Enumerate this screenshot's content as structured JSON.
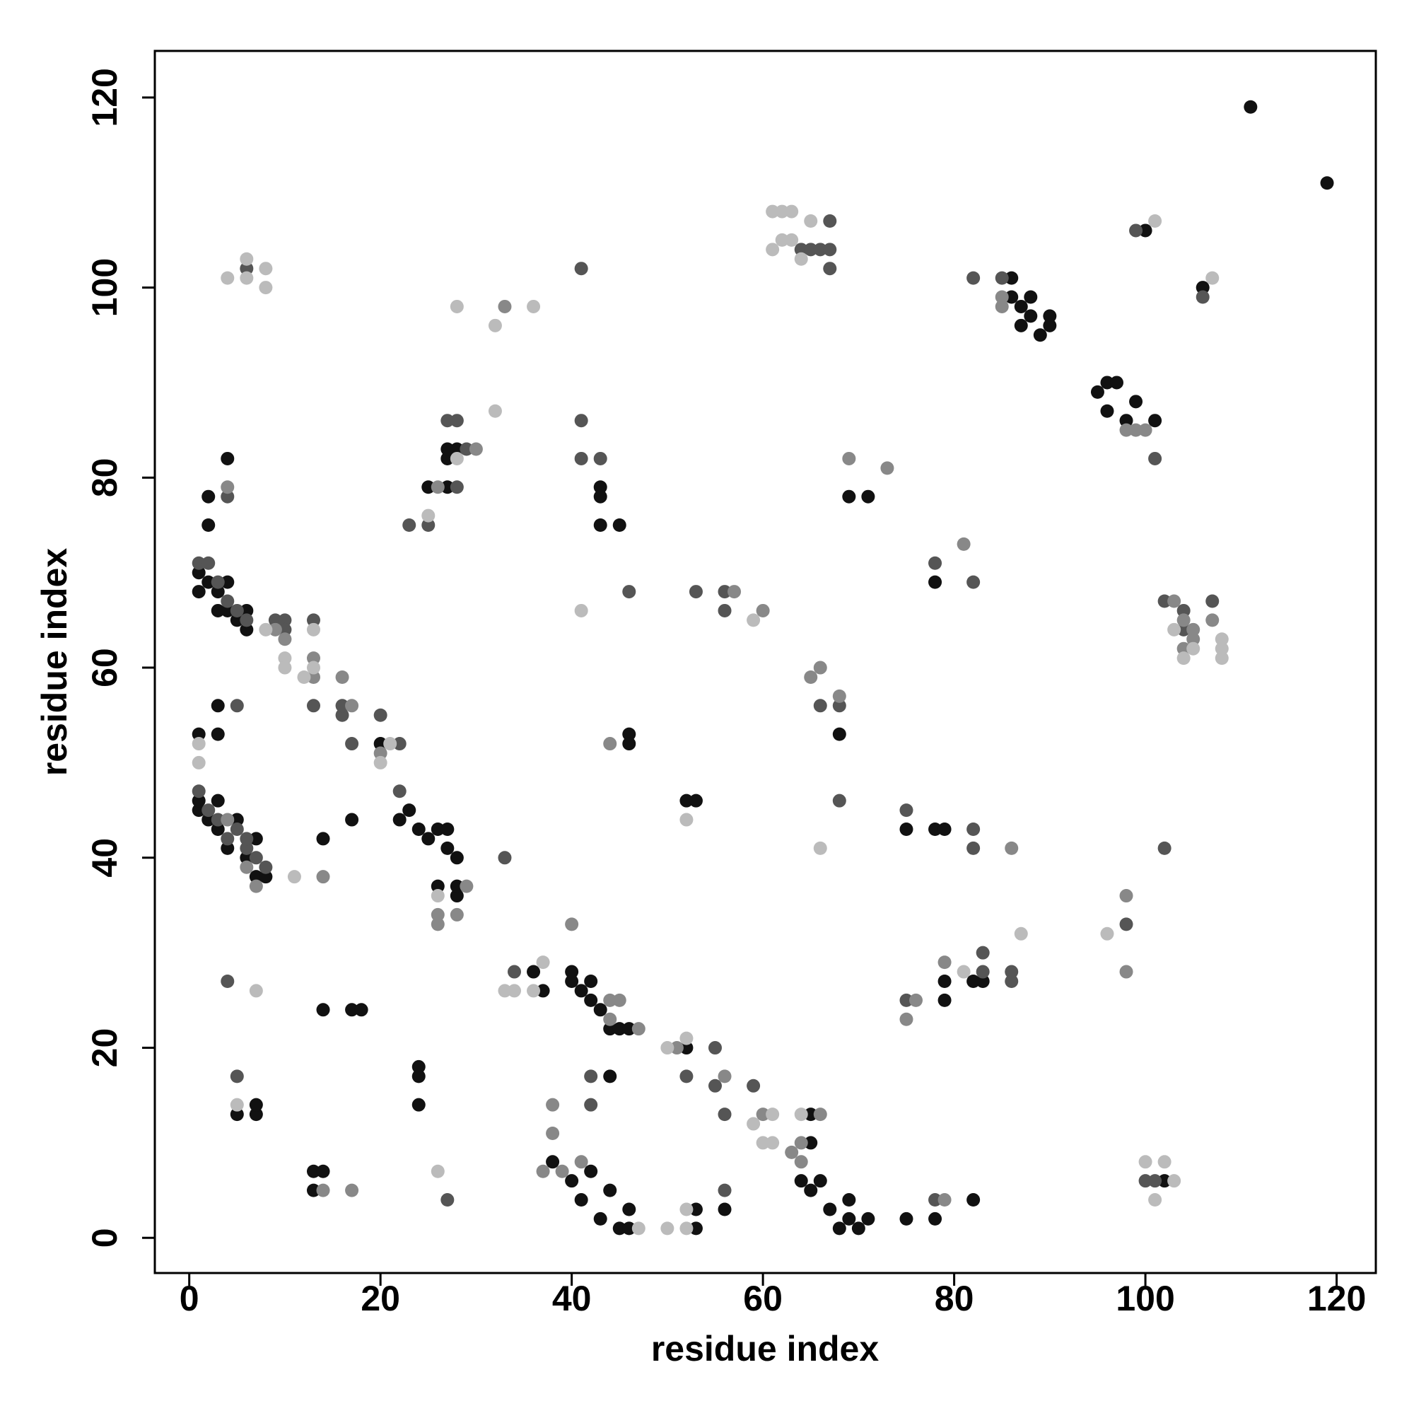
{
  "chart_data": {
    "type": "scatter",
    "xlabel": "residue index",
    "ylabel": "residue index",
    "xlim": [
      -3.6,
      124.1
    ],
    "ylim": [
      -3.7,
      124.9
    ],
    "xticks": [
      0,
      20,
      40,
      60,
      80,
      100,
      120
    ],
    "yticks": [
      0,
      20,
      40,
      60,
      80,
      100,
      120
    ],
    "series": [
      {
        "color": "#111111",
        "x": [
          1,
          1,
          2,
          3,
          3,
          4,
          5,
          6,
          7,
          7,
          8,
          1,
          1,
          2,
          3,
          3,
          4,
          4,
          5,
          6,
          6,
          2,
          2,
          4,
          3,
          1,
          3,
          5,
          7,
          7,
          13,
          14,
          13,
          14,
          17,
          18,
          17,
          14,
          20,
          22,
          23,
          24,
          25,
          26,
          27,
          28,
          27,
          24,
          24,
          24,
          26,
          28,
          28,
          25,
          27,
          27,
          27,
          28,
          37,
          36,
          40,
          40,
          41,
          42,
          42,
          43,
          44,
          44,
          45,
          46,
          38,
          40,
          41,
          42,
          43,
          44,
          45,
          46,
          46,
          43,
          43,
          43,
          45,
          46,
          46,
          52,
          53,
          52,
          53,
          53,
          56,
          64,
          65,
          66,
          67,
          68,
          69,
          69,
          70,
          71,
          65,
          65,
          75,
          75,
          78,
          79,
          78,
          79,
          79,
          82,
          83,
          82,
          69,
          71,
          78,
          68,
          86,
          86,
          87,
          88,
          87,
          88,
          89,
          90,
          90,
          95,
          96,
          96,
          97,
          98,
          99,
          101,
          100,
          106,
          102,
          111,
          119
        ],
        "values": [
          45,
          46,
          44,
          46,
          43,
          41,
          44,
          40,
          42,
          38,
          38,
          68,
          70,
          69,
          66,
          68,
          69,
          66,
          65,
          66,
          64,
          78,
          75,
          82,
          56,
          53,
          53,
          13,
          13,
          14,
          7,
          7,
          5,
          24,
          24,
          24,
          44,
          42,
          52,
          44,
          45,
          43,
          42,
          43,
          41,
          40,
          43,
          18,
          17,
          14,
          37,
          36,
          37,
          79,
          79,
          82,
          83,
          83,
          26,
          28,
          28,
          27,
          26,
          27,
          25,
          24,
          22,
          17,
          22,
          22,
          8,
          6,
          4,
          7,
          2,
          5,
          1,
          3,
          1,
          79,
          78,
          75,
          75,
          53,
          52,
          46,
          46,
          20,
          3,
          1,
          3,
          6,
          5,
          6,
          3,
          1,
          4,
          2,
          1,
          2,
          10,
          13,
          43,
          2,
          43,
          43,
          2,
          27,
          25,
          27,
          27,
          4,
          78,
          78,
          69,
          53,
          101,
          99,
          98,
          99,
          96,
          97,
          95,
          97,
          96,
          89,
          90,
          87,
          90,
          86,
          88,
          86,
          106,
          100,
          6,
          119,
          111
        ]
      },
      {
        "color": "#555555",
        "x": [
          1,
          2,
          3,
          4,
          5,
          6,
          6,
          7,
          8,
          1,
          2,
          3,
          4,
          5,
          6,
          4,
          5,
          5,
          4,
          6,
          9,
          10,
          10,
          13,
          13,
          16,
          17,
          16,
          20,
          22,
          22,
          23,
          25,
          27,
          28,
          28,
          29,
          27,
          33,
          34,
          41,
          41,
          41,
          43,
          42,
          42,
          46,
          53,
          56,
          56,
          52,
          55,
          55,
          56,
          56,
          59,
          64,
          65,
          67,
          67,
          66,
          67,
          66,
          68,
          68,
          78,
          82,
          82,
          82,
          75,
          75,
          83,
          83,
          86,
          86,
          78,
          82,
          85,
          98,
          99,
          101,
          102,
          102,
          104,
          104,
          106,
          107,
          101,
          100
        ],
        "values": [
          47,
          45,
          44,
          42,
          43,
          41,
          42,
          40,
          39,
          71,
          71,
          69,
          67,
          66,
          65,
          27,
          17,
          56,
          78,
          102,
          65,
          65,
          64,
          65,
          56,
          55,
          52,
          56,
          55,
          52,
          47,
          75,
          75,
          86,
          86,
          79,
          83,
          4,
          40,
          28,
          102,
          86,
          82,
          82,
          17,
          14,
          68,
          68,
          68,
          66,
          17,
          20,
          16,
          5,
          13,
          16,
          104,
          104,
          107,
          102,
          104,
          104,
          56,
          56,
          46,
          71,
          69,
          43,
          41,
          45,
          25,
          28,
          30,
          28,
          27,
          4,
          101,
          101,
          33,
          106,
          82,
          67,
          41,
          66,
          64,
          99,
          67,
          6,
          6
        ]
      },
      {
        "color": "#888888",
        "x": [
          4,
          4,
          6,
          7,
          9,
          10,
          13,
          13,
          14,
          17,
          14,
          16,
          17,
          20,
          26,
          26,
          28,
          29,
          30,
          33,
          26,
          38,
          38,
          39,
          41,
          37,
          44,
          45,
          44,
          47,
          40,
          44,
          51,
          56,
          60,
          60,
          57,
          64,
          63,
          64,
          66,
          68,
          65,
          66,
          69,
          73,
          81,
          86,
          76,
          75,
          79,
          79,
          85,
          85,
          98,
          100,
          99,
          103,
          104,
          104,
          105,
          105,
          107,
          98,
          98
        ],
        "values": [
          79,
          44,
          39,
          37,
          64,
          63,
          61,
          59,
          38,
          5,
          5,
          59,
          56,
          51,
          34,
          33,
          34,
          37,
          83,
          98,
          79,
          14,
          11,
          7,
          8,
          7,
          25,
          25,
          23,
          22,
          33,
          52,
          20,
          17,
          13,
          66,
          68,
          10,
          9,
          8,
          13,
          57,
          59,
          60,
          82,
          81,
          73,
          41,
          25,
          23,
          29,
          4,
          98,
          99,
          85,
          85,
          85,
          67,
          65,
          62,
          64,
          63,
          65,
          28,
          36
        ]
      },
      {
        "color": "#bbbbbb",
        "x": [
          1,
          1,
          4,
          6,
          6,
          8,
          8,
          5,
          7,
          8,
          10,
          10,
          12,
          13,
          13,
          11,
          21,
          20,
          25,
          26,
          26,
          28,
          28,
          32,
          36,
          32,
          33,
          34,
          36,
          37,
          41,
          47,
          50,
          50,
          52,
          52,
          52,
          52,
          61,
          62,
          63,
          61,
          62,
          63,
          64,
          65,
          59,
          60,
          61,
          61,
          59,
          64,
          66,
          81,
          87,
          96,
          101,
          107,
          100,
          101,
          102,
          103,
          103,
          105,
          104,
          108,
          108,
          108
        ],
        "values": [
          50,
          52,
          101,
          103,
          101,
          102,
          100,
          14,
          26,
          64,
          61,
          60,
          59,
          64,
          60,
          38,
          52,
          50,
          76,
          36,
          7,
          98,
          82,
          96,
          98,
          87,
          26,
          26,
          26,
          29,
          66,
          1,
          1,
          20,
          21,
          1,
          3,
          44,
          108,
          108,
          108,
          104,
          105,
          105,
          103,
          107,
          12,
          10,
          10,
          13,
          65,
          13,
          41,
          28,
          32,
          32,
          107,
          101,
          8,
          4,
          8,
          6,
          64,
          62,
          61,
          63,
          62,
          61
        ]
      }
    ]
  }
}
